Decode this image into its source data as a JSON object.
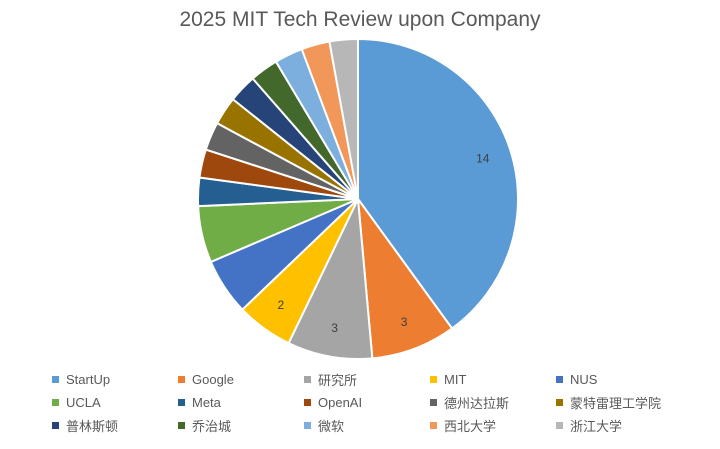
{
  "chart_data": {
    "type": "pie",
    "title": "2025 MIT Tech Review upon Company",
    "legend_position": "bottom",
    "slices": [
      {
        "label": "StartUp",
        "value": 14,
        "color": "#5b9bd5",
        "data_label": "14"
      },
      {
        "label": "Google",
        "value": 3,
        "color": "#ed7d31",
        "data_label": "3"
      },
      {
        "label": "研究所",
        "value": 3,
        "color": "#a5a5a5",
        "data_label": "3"
      },
      {
        "label": "MIT",
        "value": 2,
        "color": "#ffc000",
        "data_label": "2"
      },
      {
        "label": "NUS",
        "value": 2,
        "color": "#4472c4",
        "data_label": ""
      },
      {
        "label": "UCLA",
        "value": 2,
        "color": "#70ad47",
        "data_label": ""
      },
      {
        "label": "Meta",
        "value": 1,
        "color": "#255e91",
        "data_label": ""
      },
      {
        "label": "OpenAI",
        "value": 1,
        "color": "#9e480e",
        "data_label": ""
      },
      {
        "label": "德州达拉斯",
        "value": 1,
        "color": "#636363",
        "data_label": ""
      },
      {
        "label": "蒙特雷理工学院",
        "value": 1,
        "color": "#997300",
        "data_label": ""
      },
      {
        "label": "普林斯顿",
        "value": 1,
        "color": "#264478",
        "data_label": ""
      },
      {
        "label": "乔治城",
        "value": 1,
        "color": "#43682b",
        "data_label": ""
      },
      {
        "label": "微软",
        "value": 1,
        "color": "#7cafdd",
        "data_label": ""
      },
      {
        "label": "西北大学",
        "value": 1,
        "color": "#f1975a",
        "data_label": ""
      },
      {
        "label": "浙江大学",
        "value": 1,
        "color": "#b7b7b7",
        "data_label": ""
      }
    ]
  }
}
